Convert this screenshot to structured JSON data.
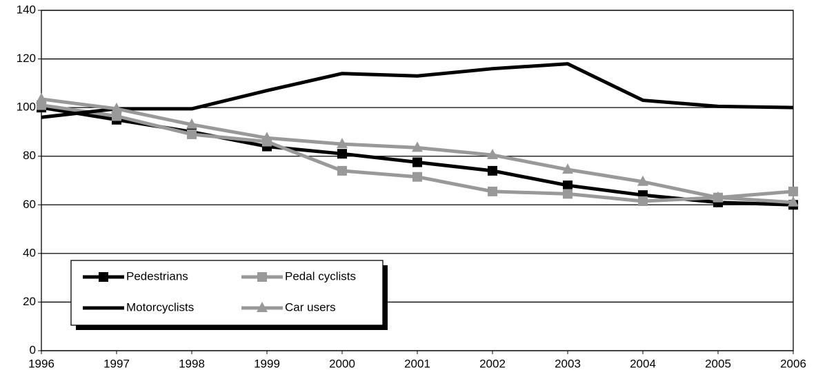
{
  "chart_data": {
    "type": "line",
    "categories": [
      "1996",
      "1997",
      "1998",
      "1999",
      "2000",
      "2001",
      "2002",
      "2003",
      "2004",
      "2005",
      "2006"
    ],
    "series": [
      {
        "name": "Pedestrians",
        "color": "#000000",
        "marker": "square",
        "values": [
          100,
          95,
          90,
          84,
          81,
          77.5,
          74,
          68,
          64,
          61,
          60
        ]
      },
      {
        "name": "Pedal cyclists",
        "color": "#999999",
        "marker": "square",
        "values": [
          101,
          96.5,
          89,
          86,
          74,
          71.5,
          65.5,
          64.5,
          61.5,
          63,
          65.5
        ]
      },
      {
        "name": "Motorcyclists",
        "color": "#000000",
        "marker": null,
        "values": [
          96,
          99.5,
          99.5,
          107,
          114,
          113,
          116,
          118,
          103,
          100.5,
          100
        ]
      },
      {
        "name": "Car users",
        "color": "#999999",
        "marker": "triangle",
        "values": [
          103.5,
          99.5,
          93,
          87.5,
          85,
          83.5,
          80.5,
          74.5,
          69.5,
          63,
          61
        ]
      }
    ],
    "ylim": [
      0,
      140
    ],
    "yticks": [
      0,
      20,
      40,
      60,
      80,
      100,
      120,
      140
    ],
    "grid": true
  }
}
